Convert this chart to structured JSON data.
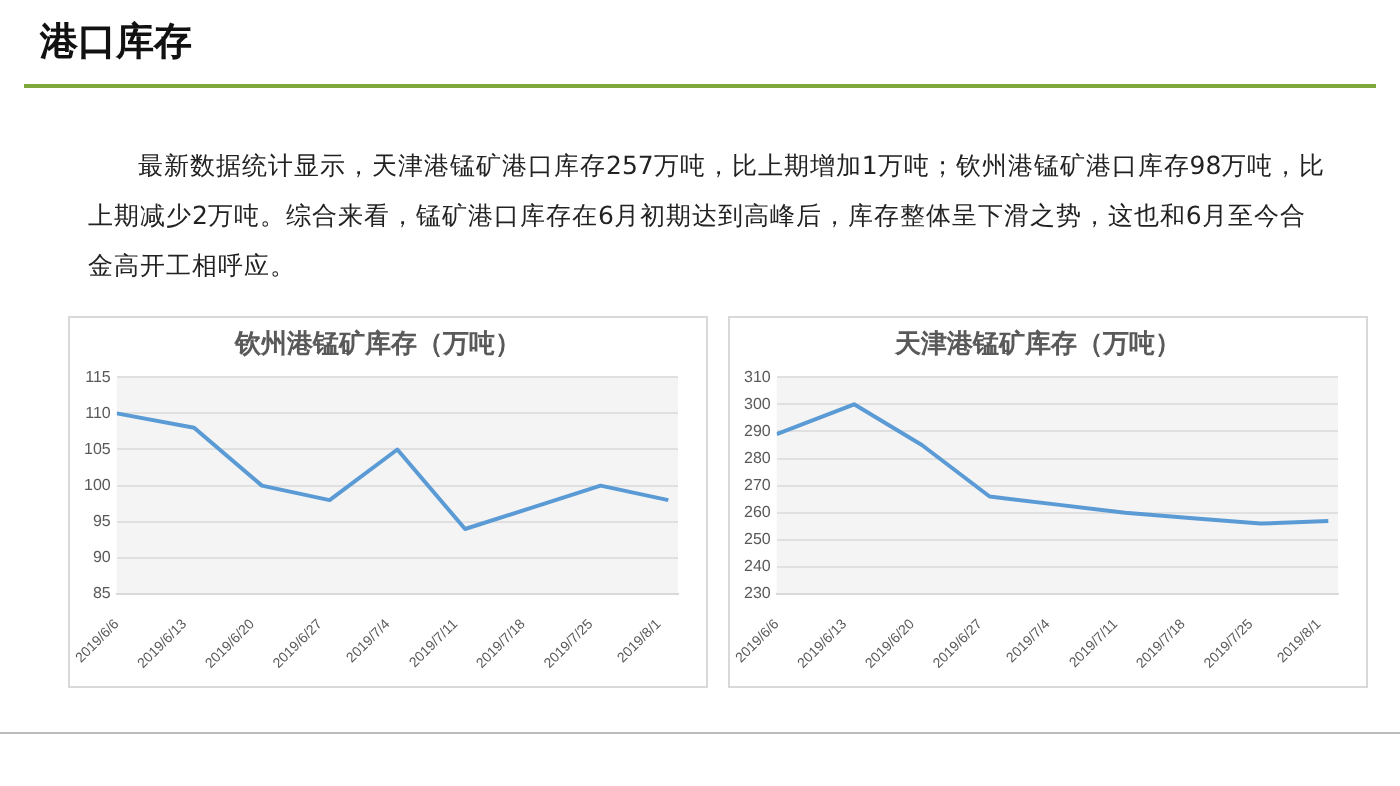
{
  "chart_data": [
    {
      "type": "other",
      "title": "港口库存",
      "annotations": [
        "最新数据统计显示，天津港锰矿港口库存257万吨，比上期增加1万吨；钦州港锰矿港口库存98万吨，比上期减少2万吨。综合来看，锰矿港口库存在6月初期达到高峰后，库存整体呈下滑之势，这也和6月至今合金高开工相呼应。"
      ]
    },
    {
      "type": "line",
      "title": "钦州港锰矿库存（万吨）",
      "x": [
        "2019-06-06",
        "2019-06-14",
        "2019-06-21",
        "2019-06-28",
        "2019-07-05",
        "2019-07-12",
        "2019-07-19",
        "2019-07-26",
        "2019-08-02"
      ],
      "series": [
        {
          "color": "#5b9bd5",
          "values": [
            110,
            108,
            100,
            98,
            105,
            94,
            97,
            100,
            98
          ]
        }
      ],
      "xlim": [
        "2019-06-06",
        "2019-08-03"
      ],
      "xticks": [
        {
          "value": "2019-06-06",
          "label": "2019/6/6"
        },
        {
          "value": "2019-06-13",
          "label": "2019/6/13"
        },
        {
          "value": "2019-06-20",
          "label": "2019/6/20"
        },
        {
          "value": "2019-06-27",
          "label": "2019/6/27"
        },
        {
          "value": "2019-07-04",
          "label": "2019/7/4"
        },
        {
          "value": "2019-07-11",
          "label": "2019/7/11"
        },
        {
          "value": "2019-07-18",
          "label": "2019/7/18"
        },
        {
          "value": "2019-07-25",
          "label": "2019/7/25"
        },
        {
          "value": "2019-08-01",
          "label": "2019/8/1"
        }
      ],
      "ylim": [
        85,
        115
      ],
      "yticks": [
        85,
        90,
        95,
        100,
        105,
        110,
        115
      ],
      "grid": "y",
      "legend": false,
      "marker": "none",
      "line_style": "solid"
    },
    {
      "type": "line",
      "title": "天津港锰矿库存（万吨）",
      "x": [
        "2019-06-06",
        "2019-06-14",
        "2019-06-21",
        "2019-06-28",
        "2019-07-05",
        "2019-07-12",
        "2019-07-19",
        "2019-07-26",
        "2019-08-02"
      ],
      "series": [
        {
          "color": "#5b9bd5",
          "values": [
            289,
            300,
            285,
            266,
            263,
            260,
            258,
            256,
            257
          ]
        }
      ],
      "xlim": [
        "2019-06-06",
        "2019-08-03"
      ],
      "xticks": [
        {
          "value": "2019-06-06",
          "label": "2019/6/6"
        },
        {
          "value": "2019-06-13",
          "label": "2019/6/13"
        },
        {
          "value": "2019-06-20",
          "label": "2019/6/20"
        },
        {
          "value": "2019-06-27",
          "label": "2019/6/27"
        },
        {
          "value": "2019-07-04",
          "label": "2019/7/4"
        },
        {
          "value": "2019-07-11",
          "label": "2019/7/11"
        },
        {
          "value": "2019-07-18",
          "label": "2019/7/18"
        },
        {
          "value": "2019-07-25",
          "label": "2019/7/25"
        },
        {
          "value": "2019-08-01",
          "label": "2019/8/1"
        }
      ],
      "ylim": [
        230,
        310
      ],
      "yticks": [
        230,
        240,
        250,
        260,
        270,
        280,
        290,
        300,
        310
      ],
      "grid": "y",
      "legend": false,
      "marker": "none",
      "line_style": "solid"
    }
  ]
}
